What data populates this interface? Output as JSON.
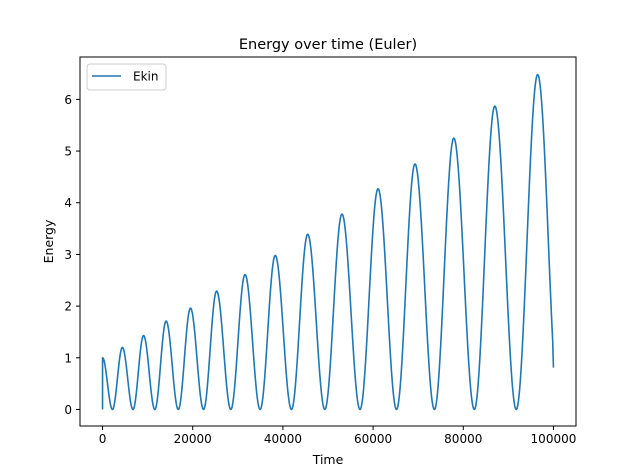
{
  "chart_data": {
    "type": "line",
    "title": "Energy over time (Euler)",
    "xlabel": "Time",
    "ylabel": "Energy",
    "xlim": [
      -5000,
      105000
    ],
    "ylim": [
      -0.32,
      6.82
    ],
    "xticks": [
      0,
      20000,
      40000,
      60000,
      80000,
      100000
    ],
    "xtick_labels": [
      "0",
      "20000",
      "40000",
      "60000",
      "80000",
      "100000"
    ],
    "yticks": [
      0,
      1,
      2,
      3,
      4,
      5,
      6
    ],
    "ytick_labels": [
      "0",
      "1",
      "2",
      "3",
      "4",
      "5",
      "6"
    ],
    "grid": false,
    "legend": {
      "position": "top-left",
      "entries": [
        "Ekin"
      ]
    },
    "series": [
      {
        "name": "Ekin",
        "color": "#1f77b4",
        "peaks": [
          {
            "x": 0,
            "y": 1.0
          },
          {
            "x": 4400,
            "y": 1.2
          },
          {
            "x": 9100,
            "y": 1.43
          },
          {
            "x": 14100,
            "y": 1.71
          },
          {
            "x": 19500,
            "y": 1.96
          },
          {
            "x": 25300,
            "y": 2.29
          },
          {
            "x": 31600,
            "y": 2.61
          },
          {
            "x": 38300,
            "y": 2.98
          },
          {
            "x": 45500,
            "y": 3.39
          },
          {
            "x": 53100,
            "y": 3.78
          },
          {
            "x": 61100,
            "y": 4.27
          },
          {
            "x": 69300,
            "y": 4.75
          },
          {
            "x": 77900,
            "y": 5.25
          },
          {
            "x": 87000,
            "y": 5.87
          },
          {
            "x": 96500,
            "y": 6.48
          }
        ],
        "end": {
          "x": 100000,
          "y": 0.81
        }
      }
    ]
  }
}
